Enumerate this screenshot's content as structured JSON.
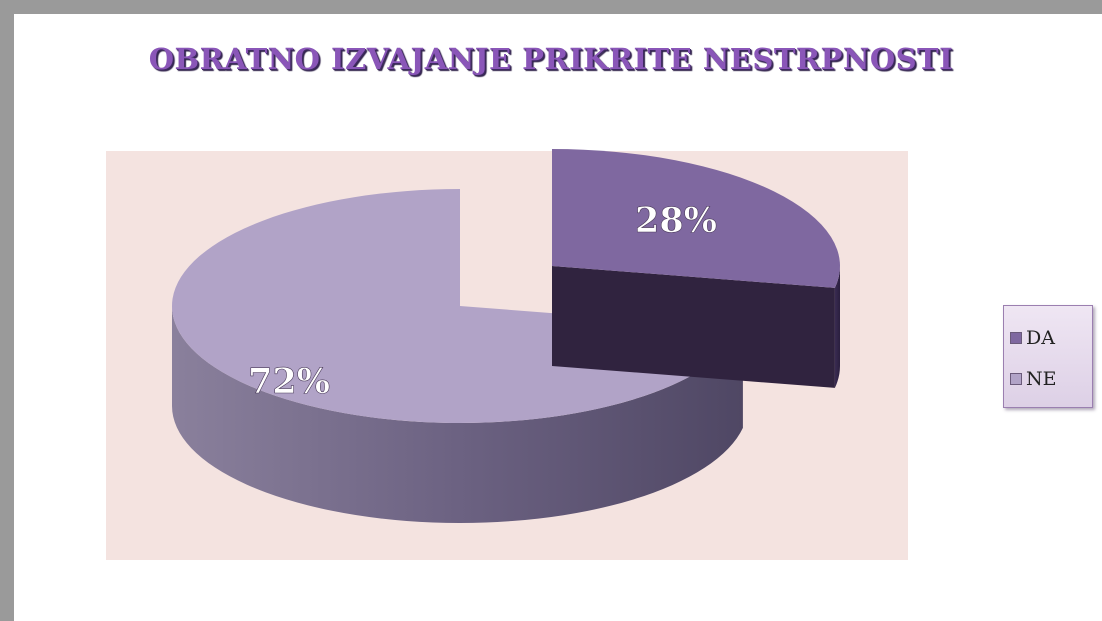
{
  "chart_data": {
    "type": "pie",
    "title": "OBRATNO IZVAJANJE PRIKRITE NESTRPNOSTI",
    "labels": [
      "DA",
      "NE"
    ],
    "values": [
      28,
      72
    ],
    "value_labels": [
      "28%",
      "72%"
    ],
    "colors": [
      "#7f68a0",
      "#b1a3c7"
    ],
    "legend_position": "right",
    "style": "3d-exploded"
  }
}
